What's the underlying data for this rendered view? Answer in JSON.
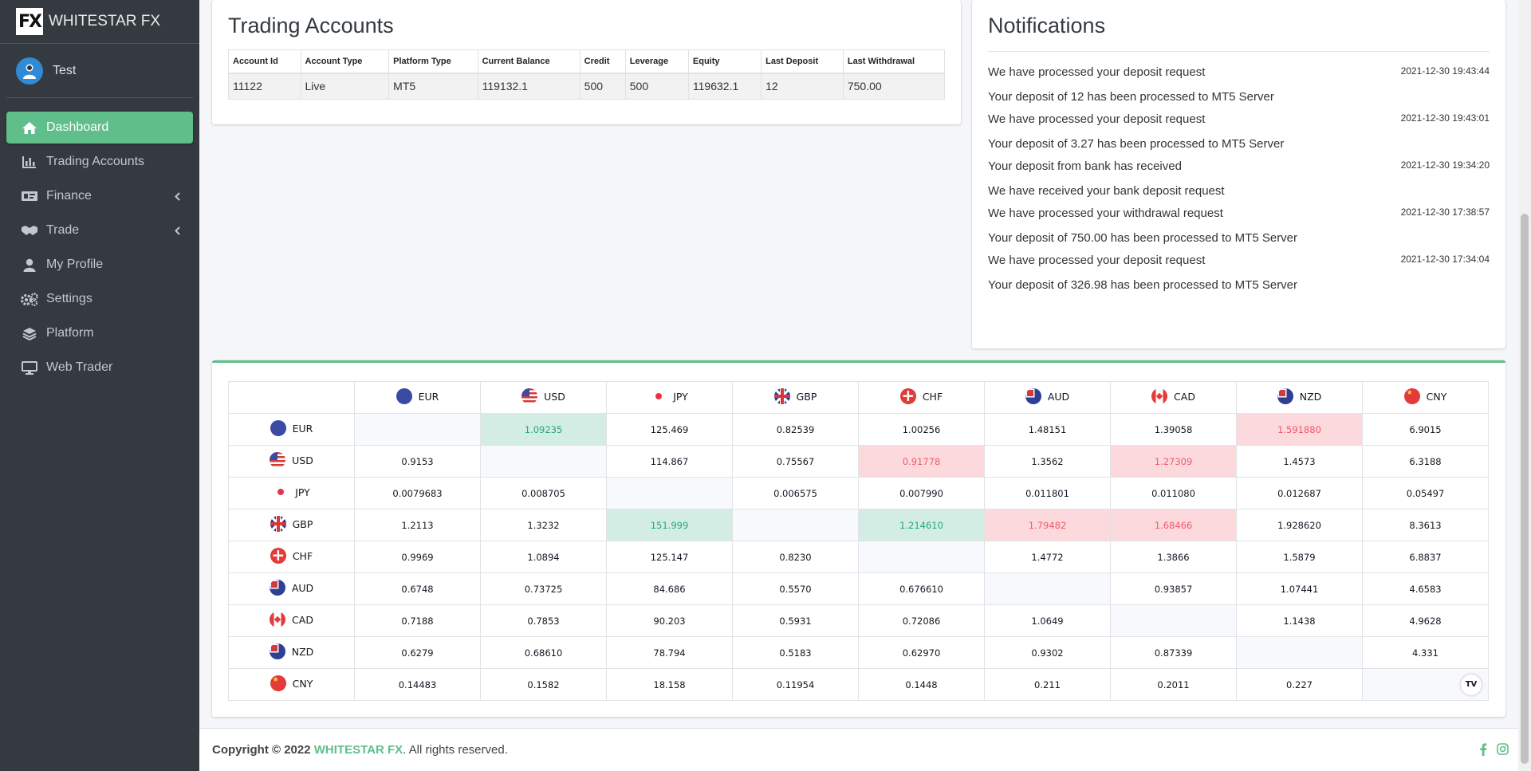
{
  "brand": {
    "logo": "FX",
    "name": "WHITESTAR FX"
  },
  "user": {
    "name": "Test"
  },
  "nav": [
    {
      "label": "Dashboard",
      "icon": "home-icon",
      "active": true
    },
    {
      "label": "Trading Accounts",
      "icon": "chart-icon"
    },
    {
      "label": "Finance",
      "icon": "money-icon",
      "arrow": true
    },
    {
      "label": "Trade",
      "icon": "handshake-icon",
      "arrow": true
    },
    {
      "label": "My Profile",
      "icon": "user-icon"
    },
    {
      "label": "Settings",
      "icon": "gears-icon"
    },
    {
      "label": "Platform",
      "icon": "layers-icon"
    },
    {
      "label": "Web Trader",
      "icon": "desktop-icon"
    }
  ],
  "accounts": {
    "title": "Trading Accounts",
    "headers": [
      "Account Id",
      "Account Type",
      "Platform Type",
      "Current Balance",
      "Credit",
      "Leverage",
      "Equity",
      "Last Deposit",
      "Last Withdrawal"
    ],
    "rows": [
      [
        "11122",
        "Live",
        "MT5",
        "119132.1",
        "500",
        "500",
        "119632.1",
        "12",
        "750.00"
      ]
    ]
  },
  "notifications": {
    "title": "Notifications",
    "items": [
      {
        "title": "We have processed your deposit request",
        "time": "2021-12-30 19:43:44",
        "body": "Your deposit of 12 has been processed to MT5 Server"
      },
      {
        "title": "We have processed your deposit request",
        "time": "2021-12-30 19:43:01",
        "body": "Your deposit of 3.27 has been processed to MT5 Server"
      },
      {
        "title": "Your deposit from bank has received",
        "time": "2021-12-30 19:34:20",
        "body": "We have received your bank deposit request"
      },
      {
        "title": "We have processed your withdrawal request",
        "time": "2021-12-30 17:38:57",
        "body": "Your deposit of 750.00 has been processed to MT5 Server"
      },
      {
        "title": "We have processed your deposit request",
        "time": "2021-12-30 17:34:04",
        "body": "Your deposit of 326.98 has been processed to MT5 Server"
      }
    ]
  },
  "fx": {
    "currencies": [
      "EUR",
      "USD",
      "JPY",
      "GBP",
      "CHF",
      "AUD",
      "CAD",
      "NZD",
      "CNY"
    ],
    "rows": [
      [
        "",
        "1.09235",
        "125.469",
        "0.82539",
        "1.00256",
        "1.48151",
        "1.39058",
        "1.591880",
        "6.9015"
      ],
      [
        "0.9153",
        "",
        "114.867",
        "0.75567",
        "0.91778",
        "1.3562",
        "1.27309",
        "1.4573",
        "6.3188"
      ],
      [
        "0.0079683",
        "0.008705",
        "",
        "0.006575",
        "0.007990",
        "0.011801",
        "0.011080",
        "0.012687",
        "0.05497"
      ],
      [
        "1.2113",
        "1.3232",
        "151.999",
        "",
        "1.214610",
        "1.79482",
        "1.68466",
        "1.928620",
        "8.3613"
      ],
      [
        "0.9969",
        "1.0894",
        "125.147",
        "0.8230",
        "",
        "1.4772",
        "1.3866",
        "1.5879",
        "6.8837"
      ],
      [
        "0.6748",
        "0.73725",
        "84.686",
        "0.5570",
        "0.676610",
        "",
        "0.93857",
        "1.07441",
        "4.6583"
      ],
      [
        "0.7188",
        "0.7853",
        "90.203",
        "0.5931",
        "0.72086",
        "1.0649",
        "",
        "1.1438",
        "4.9628"
      ],
      [
        "0.6279",
        "0.68610",
        "78.794",
        "0.5183",
        "0.62970",
        "0.9302",
        "0.87339",
        "",
        "4.331"
      ],
      [
        "0.14483",
        "0.1582",
        "18.158",
        "0.11954",
        "0.1448",
        "0.211",
        "0.2011",
        "0.227",
        ""
      ]
    ],
    "up_cells": [
      [
        0,
        1
      ],
      [
        3,
        2
      ],
      [
        3,
        4
      ]
    ],
    "down_cells": [
      [
        0,
        7
      ],
      [
        1,
        4
      ],
      [
        1,
        6
      ],
      [
        3,
        5
      ],
      [
        3,
        6
      ]
    ],
    "widget_logo": "TV"
  },
  "footer": {
    "prefix": "Copyright © 2022 ",
    "brand": "WHITESTAR FX",
    "suffix": ". All rights reserved."
  },
  "colors": {
    "accent": "#5fbe8a",
    "sidebar": "#343a40",
    "up": "#22a77f",
    "down": "#ef5a6a"
  }
}
